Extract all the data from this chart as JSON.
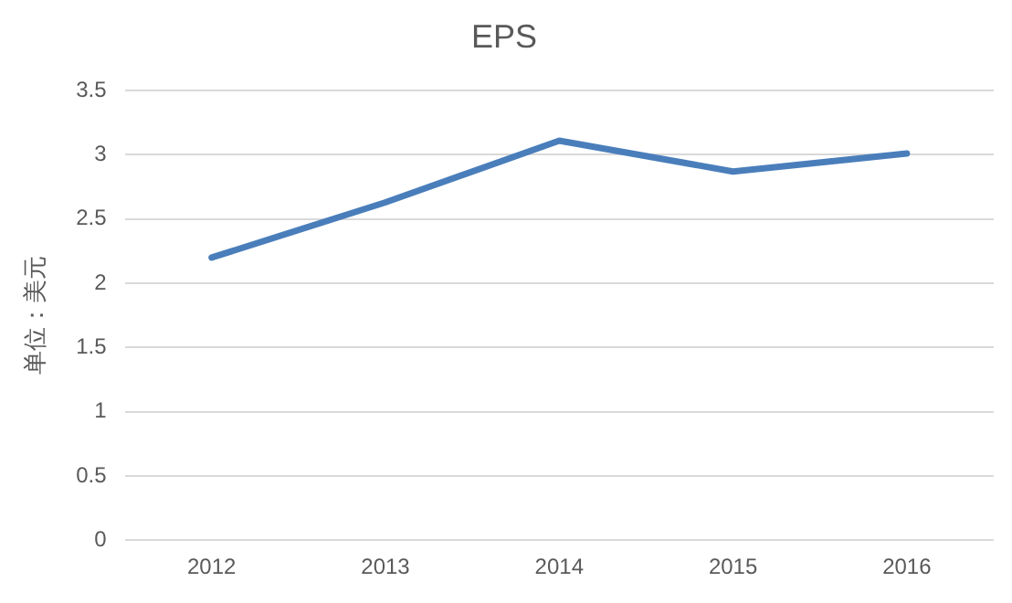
{
  "chart_data": {
    "type": "line",
    "title": "EPS",
    "ylabel": "单位：美元",
    "categories": [
      "2012",
      "2013",
      "2014",
      "2015",
      "2016"
    ],
    "series": [
      {
        "color": "#4a7ebb",
        "values": [
          2.2,
          2.63,
          3.11,
          2.87,
          3.01
        ]
      }
    ],
    "ylim": [
      0,
      3.5
    ],
    "yticks": [
      0,
      0.5,
      1,
      1.5,
      2,
      2.5,
      3,
      3.5
    ],
    "grid": "y",
    "legend": false,
    "marker": "none",
    "line_style": "solid"
  }
}
